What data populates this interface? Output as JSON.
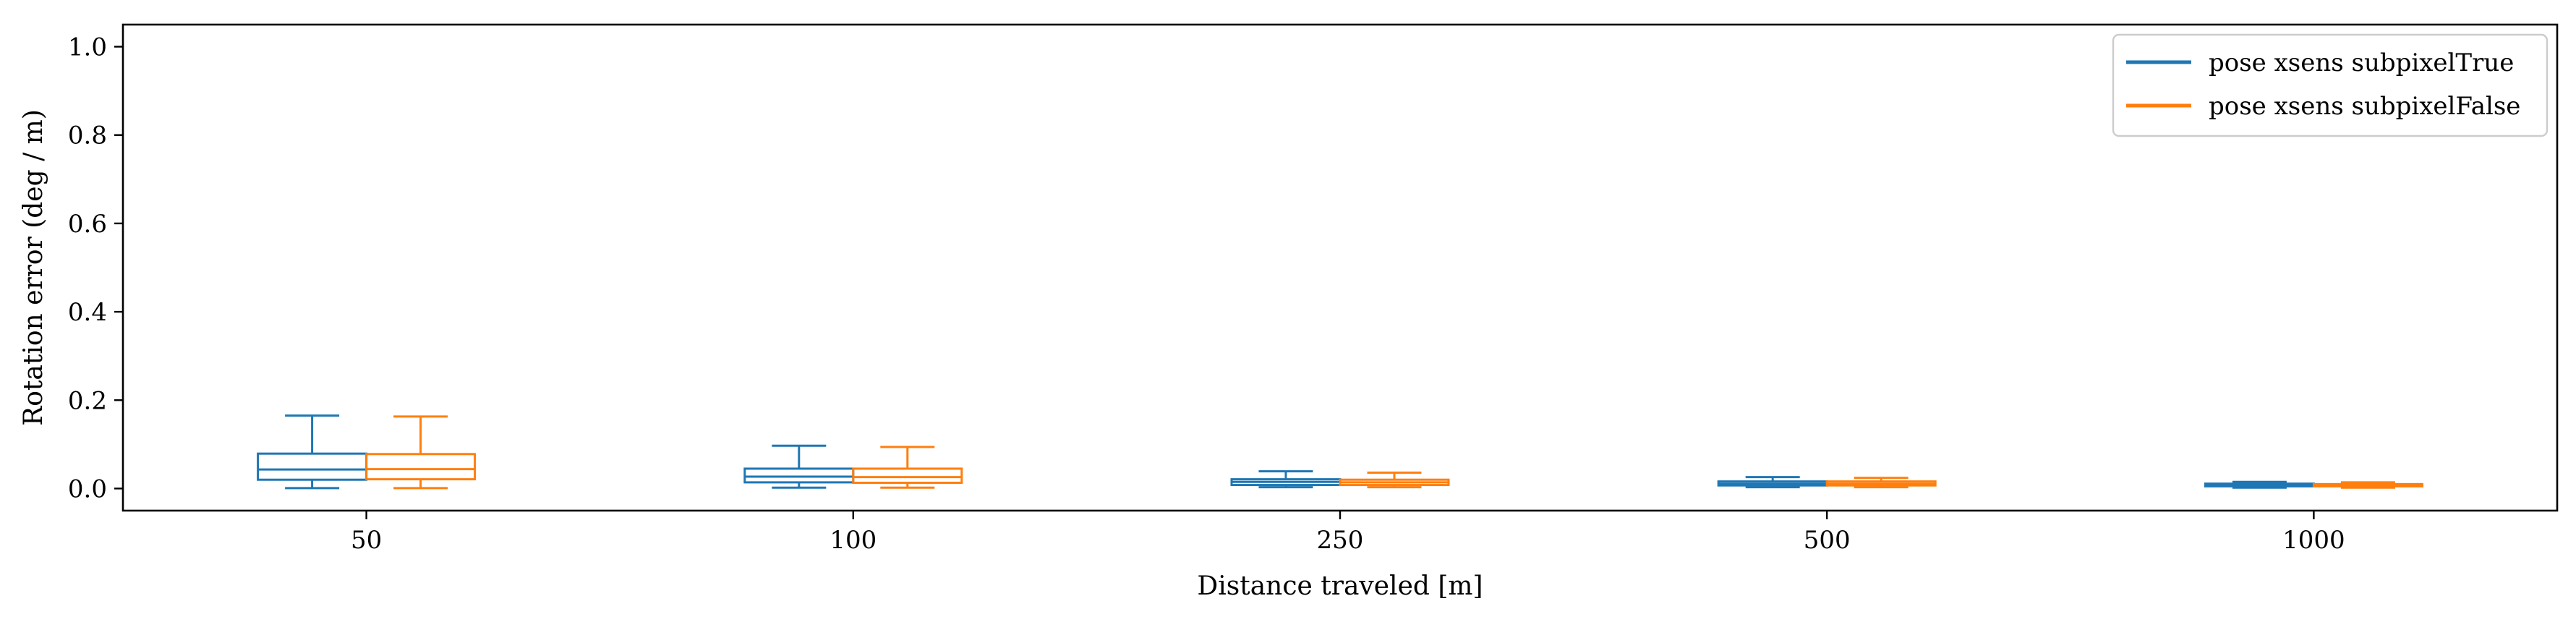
{
  "chart_data": {
    "type": "box",
    "title": "",
    "xlabel": "Distance traveled [m]",
    "ylabel": "Rotation error (deg / m)",
    "ylim": [
      -0.05,
      1.05
    ],
    "yticks": [
      0.0,
      0.2,
      0.4,
      0.6,
      0.8,
      1.0
    ],
    "ytick_labels": [
      "0.0",
      "0.2",
      "0.4",
      "0.6",
      "0.8",
      "1.0"
    ],
    "categories": [
      "50",
      "100",
      "250",
      "500",
      "1000"
    ],
    "grid": false,
    "legend_position": "top-right",
    "series": [
      {
        "name": "pose xsens subpixelTrue",
        "color": "#1f77b4",
        "boxes": [
          {
            "whislo": 0.001,
            "q1": 0.02,
            "med": 0.043,
            "q3": 0.079,
            "whishi": 0.165
          },
          {
            "whislo": 0.002,
            "q1": 0.014,
            "med": 0.027,
            "q3": 0.045,
            "whishi": 0.097
          },
          {
            "whislo": 0.003,
            "q1": 0.008,
            "med": 0.015,
            "q3": 0.021,
            "whishi": 0.039
          },
          {
            "whislo": 0.003,
            "q1": 0.007,
            "med": 0.011,
            "q3": 0.016,
            "whishi": 0.026
          },
          {
            "whislo": 0.002,
            "q1": 0.005,
            "med": 0.008,
            "q3": 0.011,
            "whishi": 0.015
          }
        ]
      },
      {
        "name": "pose xsens subpixelFalse",
        "color": "#ff7f0e",
        "boxes": [
          {
            "whislo": 0.001,
            "q1": 0.021,
            "med": 0.044,
            "q3": 0.078,
            "whishi": 0.163
          },
          {
            "whislo": 0.002,
            "q1": 0.013,
            "med": 0.026,
            "q3": 0.045,
            "whishi": 0.094
          },
          {
            "whislo": 0.003,
            "q1": 0.008,
            "med": 0.014,
            "q3": 0.02,
            "whishi": 0.036
          },
          {
            "whislo": 0.003,
            "q1": 0.007,
            "med": 0.011,
            "q3": 0.016,
            "whishi": 0.024
          },
          {
            "whislo": 0.002,
            "q1": 0.005,
            "med": 0.007,
            "q3": 0.01,
            "whishi": 0.014
          }
        ]
      }
    ]
  }
}
